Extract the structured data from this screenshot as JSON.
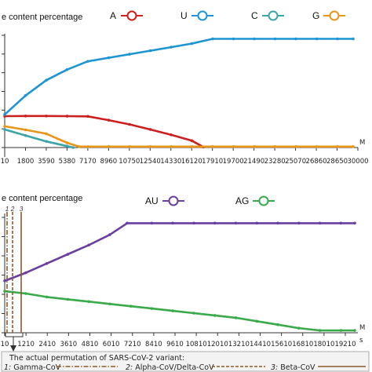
{
  "chart_data": [
    {
      "type": "line",
      "ylabel_visible": "e content percentage",
      "x_tick_labels": [
        "10",
        "1800",
        "3590",
        "5380",
        "7170",
        "8960",
        "10750",
        "12540",
        "14330",
        "16120",
        "17910",
        "19700",
        "21490",
        "23280",
        "25070",
        "26860",
        "28650",
        "30000"
      ],
      "xlim": [
        10,
        30000
      ],
      "x_axis_edge_label": "M",
      "grid": false,
      "legend_position": "top",
      "series": [
        {
          "name": "A",
          "color": "#cc1f1f",
          "x": [
            10,
            1800,
            3590,
            5380,
            7170,
            8960,
            10750,
            12540,
            14330,
            16120,
            17100
          ],
          "y": [
            0.266,
            0.267,
            0.267,
            0.266,
            0.264,
            0.232,
            0.196,
            0.153,
            0.108,
            0.058,
            0.005
          ]
        },
        {
          "name": "U",
          "color": "#1e95d3",
          "x": [
            10,
            1800,
            3590,
            5380,
            7170,
            8960,
            10750,
            12540,
            14330,
            16120,
            17910,
            19700,
            21490,
            23280,
            25070,
            26860,
            28650,
            30000
          ],
          "y": [
            0.28,
            0.44,
            0.57,
            0.66,
            0.73,
            0.76,
            0.79,
            0.82,
            0.85,
            0.88,
            0.92,
            0.92,
            0.92,
            0.92,
            0.92,
            0.92,
            0.92,
            0.92
          ]
        },
        {
          "name": "C",
          "color": "#3aa5a8",
          "x": [
            10,
            1800,
            3590,
            5380,
            5900
          ],
          "y": [
            0.153,
            0.102,
            0.052,
            0.012,
            0.0
          ]
        },
        {
          "name": "G",
          "color": "#e8961a",
          "x": [
            10,
            1800,
            3590,
            5380,
            6400,
            7170,
            8960,
            10750,
            12540,
            14330,
            16120,
            17910,
            19700,
            21490,
            23280,
            25070,
            26860,
            28650,
            30000
          ],
          "y": [
            0.18,
            0.15,
            0.117,
            0.04,
            0.008,
            0.008,
            0.008,
            0.008,
            0.008,
            0.008,
            0.008,
            0.008,
            0.008,
            0.008,
            0.008,
            0.008,
            0.008,
            0.008,
            0.008
          ]
        }
      ]
    },
    {
      "type": "line",
      "ylabel_visible": "e content percentage",
      "x_tick_labels": [
        "10",
        "1210",
        "2410",
        "3610",
        "4810",
        "6010",
        "7210",
        "8410",
        "9610",
        "10810",
        "12010",
        "13210",
        "14410",
        "15610",
        "16810",
        "18010",
        "19210"
      ],
      "xlim": [
        10,
        20000
      ],
      "x_axis_edge_label": "M\ns",
      "grid": false,
      "legend_position": "top",
      "series": [
        {
          "name": "AU",
          "color": "#6a3fa0",
          "x": [
            10,
            1210,
            2410,
            3610,
            4810,
            6010,
            7000,
            8410,
            9610,
            10810,
            12010,
            13210,
            14410,
            15610,
            16810,
            18010,
            19210,
            20000
          ],
          "y": [
            0.45,
            0.52,
            0.6,
            0.68,
            0.76,
            0.85,
            0.95,
            0.95,
            0.95,
            0.95,
            0.95,
            0.95,
            0.95,
            0.95,
            0.95,
            0.95,
            0.95,
            0.95
          ]
        },
        {
          "name": "AG",
          "color": "#3aaa4a",
          "x": [
            10,
            1210,
            2410,
            3610,
            4810,
            6010,
            7210,
            8410,
            9610,
            10810,
            12010,
            13210,
            14410,
            15610,
            16810,
            18010,
            19210,
            20000
          ],
          "y": [
            0.36,
            0.34,
            0.31,
            0.29,
            0.27,
            0.25,
            0.23,
            0.21,
            0.19,
            0.17,
            0.15,
            0.13,
            0.1,
            0.07,
            0.04,
            0.02,
            0.02,
            0.02
          ]
        }
      ],
      "variant_markers": [
        {
          "label": "1",
          "x": 310,
          "color": "#8a5a2a",
          "style": "dashdot"
        },
        {
          "label": "2",
          "x": 610,
          "color": "#8a5a2a",
          "style": "dashed"
        },
        {
          "label": "3",
          "x": 1150,
          "color": "#8a5a2a",
          "style": "solid"
        }
      ],
      "note": {
        "title": "The actual permutation of SARS-CoV-2 variant:",
        "items": [
          {
            "num": "1:",
            "name": "Gamma-CoV",
            "style": "dashdot"
          },
          {
            "num": "2:",
            "name": "Alpha-CoV/Delta-CoV",
            "style": "dashed"
          },
          {
            "num": "3:",
            "name": "Beta-CoV",
            "style": "solid"
          }
        ]
      }
    }
  ]
}
